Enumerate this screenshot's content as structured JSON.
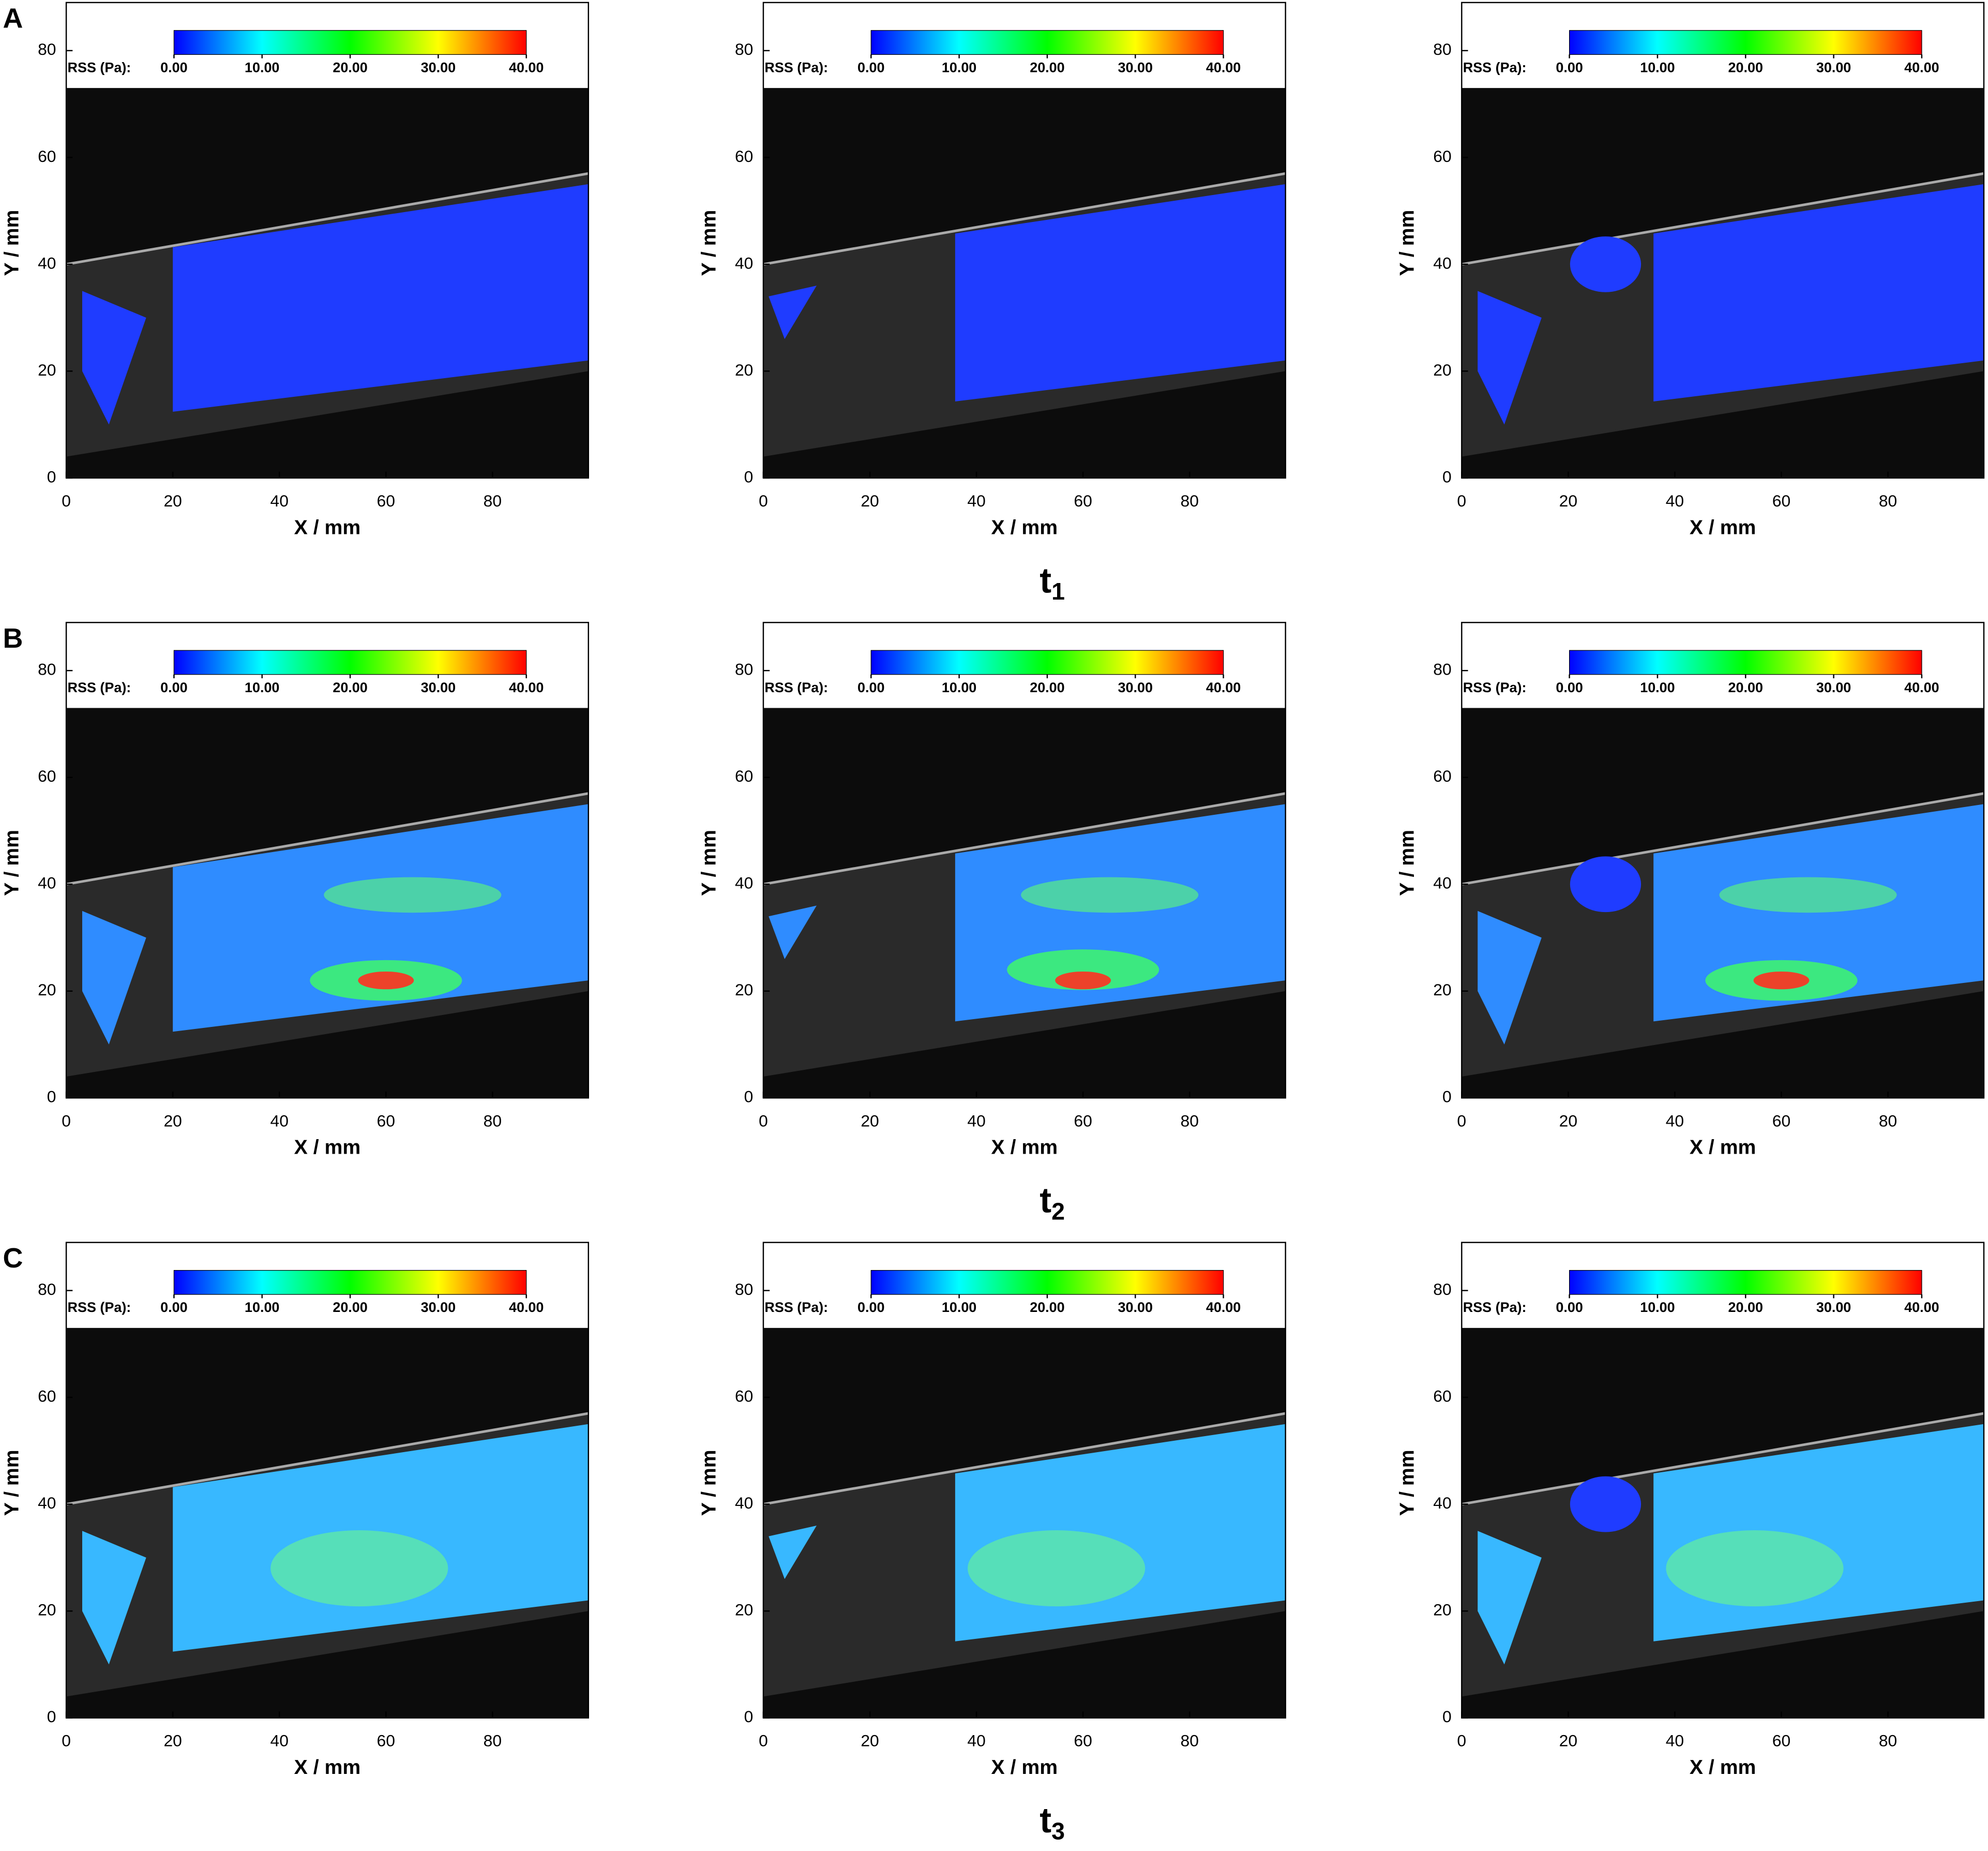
{
  "figure": {
    "row_labels": [
      "A",
      "B",
      "C"
    ],
    "time_labels": [
      {
        "main": "t",
        "sub": "1"
      },
      {
        "main": "t",
        "sub": "2"
      },
      {
        "main": "t",
        "sub": "3"
      }
    ]
  },
  "chart_data": [
    {
      "type": "heatmap",
      "xlabel": "X / mm",
      "ylabel": "Y / mm",
      "xlim": [
        0,
        98
      ],
      "ylim": [
        0,
        89
      ],
      "xticks": [
        0,
        20,
        40,
        60,
        80
      ],
      "yticks": [
        0,
        20,
        40,
        60,
        80
      ],
      "colorbar": {
        "label": "RSS (Pa):",
        "lim": [
          0,
          40
        ],
        "colors": [
          "#0000ff",
          "#00ffff",
          "#00ff00",
          "#ffff00",
          "#ff0000"
        ],
        "ticks": [
          {
            "value": 0,
            "label": "0.00"
          },
          {
            "value": 10,
            "label": "10.00"
          },
          {
            "value": 20,
            "label": "20.00"
          },
          {
            "value": 30,
            "label": "30.00"
          },
          {
            "value": 40,
            "label": "40.00"
          }
        ]
      }
    },
    {
      "type": "heatmap",
      "xlabel": "X / mm",
      "ylabel": "Y / mm",
      "xlim": [
        0,
        98
      ],
      "ylim": [
        0,
        89
      ],
      "xticks": [
        0,
        20,
        40,
        60,
        80
      ],
      "yticks": [
        0,
        20,
        40,
        60,
        80
      ],
      "colorbar": {
        "label": "RSS (Pa):",
        "lim": [
          0,
          40
        ],
        "colors": [
          "#0000ff",
          "#00ffff",
          "#00ff00",
          "#ffff00",
          "#ff0000"
        ],
        "ticks": [
          {
            "value": 0,
            "label": "0.00"
          },
          {
            "value": 10,
            "label": "10.00"
          },
          {
            "value": 20,
            "label": "20.00"
          },
          {
            "value": 30,
            "label": "30.00"
          },
          {
            "value": 40,
            "label": "40.00"
          }
        ]
      }
    },
    {
      "type": "heatmap",
      "xlabel": "X / mm",
      "ylabel": "Y / mm",
      "xlim": [
        0,
        98
      ],
      "ylim": [
        0,
        89
      ],
      "xticks": [
        0,
        20,
        40,
        60,
        80
      ],
      "yticks": [
        0,
        20,
        40,
        60,
        80
      ],
      "colorbar": {
        "label": "RSS (Pa):",
        "lim": [
          0,
          40
        ],
        "colors": [
          "#0000ff",
          "#00ffff",
          "#00ff00",
          "#ffff00",
          "#ff0000"
        ],
        "ticks": [
          {
            "value": 0,
            "label": "0.00"
          },
          {
            "value": 10,
            "label": "10.00"
          },
          {
            "value": 20,
            "label": "20.00"
          },
          {
            "value": 30,
            "label": "30.00"
          },
          {
            "value": 40,
            "label": "40.00"
          }
        ]
      }
    },
    {
      "type": "heatmap",
      "xlabel": "X / mm",
      "ylabel": "Y / mm",
      "xlim": [
        0,
        98
      ],
      "ylim": [
        0,
        89
      ],
      "xticks": [
        0,
        20,
        40,
        60,
        80
      ],
      "yticks": [
        0,
        20,
        40,
        60,
        80
      ],
      "colorbar": {
        "label": "RSS (Pa):",
        "lim": [
          0,
          40
        ],
        "colors": [
          "#0000ff",
          "#00ffff",
          "#00ff00",
          "#ffff00",
          "#ff0000"
        ],
        "ticks": [
          {
            "value": 0,
            "label": "0.00"
          },
          {
            "value": 10,
            "label": "10.00"
          },
          {
            "value": 20,
            "label": "20.00"
          },
          {
            "value": 30,
            "label": "30.00"
          },
          {
            "value": 40,
            "label": "40.00"
          }
        ]
      }
    },
    {
      "type": "heatmap",
      "xlabel": "X / mm",
      "ylabel": "Y / mm",
      "xlim": [
        0,
        98
      ],
      "ylim": [
        0,
        89
      ],
      "xticks": [
        0,
        20,
        40,
        60,
        80
      ],
      "yticks": [
        0,
        20,
        40,
        60,
        80
      ],
      "colorbar": {
        "label": "RSS (Pa):",
        "lim": [
          0,
          40
        ],
        "colors": [
          "#0000ff",
          "#00ffff",
          "#00ff00",
          "#ffff00",
          "#ff0000"
        ],
        "ticks": [
          {
            "value": 0,
            "label": "0.00"
          },
          {
            "value": 10,
            "label": "10.00"
          },
          {
            "value": 20,
            "label": "20.00"
          },
          {
            "value": 30,
            "label": "30.00"
          },
          {
            "value": 40,
            "label": "40.00"
          }
        ]
      }
    },
    {
      "type": "heatmap",
      "xlabel": "X / mm",
      "ylabel": "Y / mm",
      "xlim": [
        0,
        98
      ],
      "ylim": [
        0,
        89
      ],
      "xticks": [
        0,
        20,
        40,
        60,
        80
      ],
      "yticks": [
        0,
        20,
        40,
        60,
        80
      ],
      "colorbar": {
        "label": "RSS (Pa):",
        "lim": [
          0,
          40
        ],
        "colors": [
          "#0000ff",
          "#00ffff",
          "#00ff00",
          "#ffff00",
          "#ff0000"
        ],
        "ticks": [
          {
            "value": 0,
            "label": "0.00"
          },
          {
            "value": 10,
            "label": "10.00"
          },
          {
            "value": 20,
            "label": "20.00"
          },
          {
            "value": 30,
            "label": "30.00"
          },
          {
            "value": 40,
            "label": "40.00"
          }
        ]
      }
    },
    {
      "type": "heatmap",
      "xlabel": "X / mm",
      "ylabel": "Y / mm",
      "xlim": [
        0,
        98
      ],
      "ylim": [
        0,
        89
      ],
      "xticks": [
        0,
        20,
        40,
        60,
        80
      ],
      "yticks": [
        0,
        20,
        40,
        60,
        80
      ],
      "colorbar": {
        "label": "RSS (Pa):",
        "lim": [
          0,
          40
        ],
        "colors": [
          "#0000ff",
          "#00ffff",
          "#00ff00",
          "#ffff00",
          "#ff0000"
        ],
        "ticks": [
          {
            "value": 0,
            "label": "0.00"
          },
          {
            "value": 10,
            "label": "10.00"
          },
          {
            "value": 20,
            "label": "20.00"
          },
          {
            "value": 30,
            "label": "30.00"
          },
          {
            "value": 40,
            "label": "40.00"
          }
        ]
      }
    },
    {
      "type": "heatmap",
      "xlabel": "X / mm",
      "ylabel": "Y / mm",
      "xlim": [
        0,
        98
      ],
      "ylim": [
        0,
        89
      ],
      "xticks": [
        0,
        20,
        40,
        60,
        80
      ],
      "yticks": [
        0,
        20,
        40,
        60,
        80
      ],
      "colorbar": {
        "label": "RSS (Pa):",
        "lim": [
          0,
          40
        ],
        "colors": [
          "#0000ff",
          "#00ffff",
          "#00ff00",
          "#ffff00",
          "#ff0000"
        ],
        "ticks": [
          {
            "value": 0,
            "label": "0.00"
          },
          {
            "value": 10,
            "label": "10.00"
          },
          {
            "value": 20,
            "label": "20.00"
          },
          {
            "value": 30,
            "label": "30.00"
          },
          {
            "value": 40,
            "label": "40.00"
          }
        ]
      }
    },
    {
      "type": "heatmap",
      "xlabel": "X / mm",
      "ylabel": "Y / mm",
      "xlim": [
        0,
        98
      ],
      "ylim": [
        0,
        89
      ],
      "xticks": [
        0,
        20,
        40,
        60,
        80
      ],
      "yticks": [
        0,
        20,
        40,
        60,
        80
      ],
      "colorbar": {
        "label": "RSS (Pa):",
        "lim": [
          0,
          40
        ],
        "colors": [
          "#0000ff",
          "#00ffff",
          "#00ff00",
          "#ffff00",
          "#ff0000"
        ],
        "ticks": [
          {
            "value": 0,
            "label": "0.00"
          },
          {
            "value": 10,
            "label": "10.00"
          },
          {
            "value": 20,
            "label": "20.00"
          },
          {
            "value": 30,
            "label": "30.00"
          },
          {
            "value": 40,
            "label": "40.00"
          }
        ]
      }
    }
  ]
}
